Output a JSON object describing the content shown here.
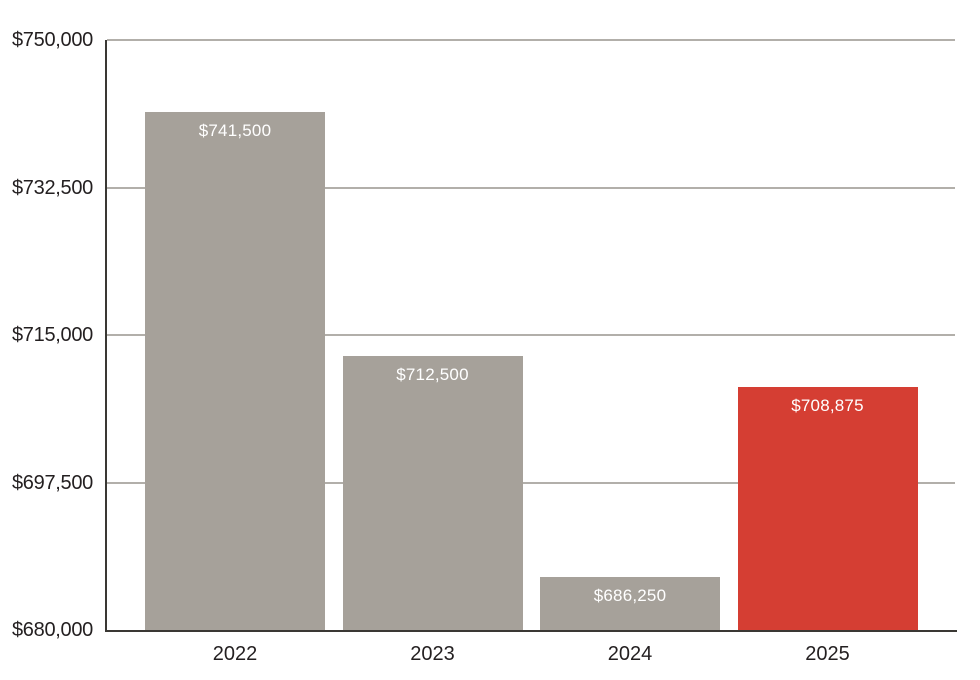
{
  "chart_data": {
    "type": "bar",
    "title": "",
    "xlabel": "",
    "ylabel": "",
    "categories": [
      "2022",
      "2023",
      "2024",
      "2025"
    ],
    "values": [
      741500,
      712500,
      686250,
      708875
    ],
    "value_labels": [
      "$741,500",
      "$712,500",
      "$686,250",
      "$708,875"
    ],
    "bar_colors": [
      "#a6a19a",
      "#a6a19a",
      "#a6a19a",
      "#d53e33"
    ],
    "ylim": [
      680000,
      750000
    ],
    "yticks": [
      680000,
      697500,
      715000,
      732500,
      750000
    ],
    "ytick_labels": [
      "$680,000",
      "$697,500",
      "$715,000",
      "$732,500",
      "$750,000"
    ],
    "grid": true,
    "legend_position": "none"
  },
  "colors": {
    "bar_default": "#a6a19a",
    "bar_highlight": "#d53e33",
    "gridline": "#b2afaa",
    "axis_line": "#3a3834",
    "tick_text": "#231f20",
    "bar_label_text": "#ffffff",
    "background": "#ffffff"
  }
}
